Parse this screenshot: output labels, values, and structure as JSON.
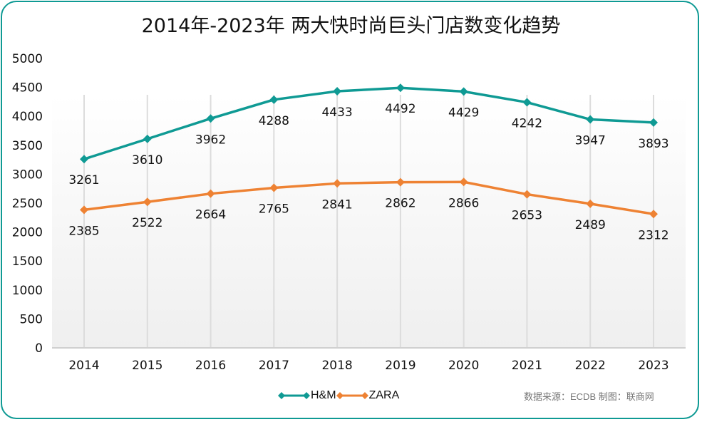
{
  "chart_data": {
    "type": "line",
    "title": "2014年-2023年 两大快时尚巨头门店数变化趋势",
    "xlabel": "",
    "ylabel": "",
    "categories": [
      "2014",
      "2015",
      "2016",
      "2017",
      "2018",
      "2019",
      "2020",
      "2021",
      "2022",
      "2023"
    ],
    "ylim": [
      0,
      5000
    ],
    "yticks": [
      "0",
      "500",
      "1000",
      "1500",
      "2000",
      "2500",
      "3000",
      "3500",
      "4000",
      "4500",
      "5000"
    ],
    "grid": "vertical",
    "legend_position": "bottom",
    "series": [
      {
        "name": "H&M",
        "color": "#0f9a94",
        "marker": "diamond",
        "values": [
          3261,
          3610,
          3962,
          4288,
          4433,
          4492,
          4429,
          4242,
          3947,
          3893
        ]
      },
      {
        "name": "ZARA",
        "color": "#ee8233",
        "marker": "diamond",
        "values": [
          2385,
          2522,
          2664,
          2765,
          2841,
          2862,
          2866,
          2653,
          2489,
          2312
        ]
      }
    ],
    "source_note": "数据来源：ECDB  制图：联商网"
  }
}
